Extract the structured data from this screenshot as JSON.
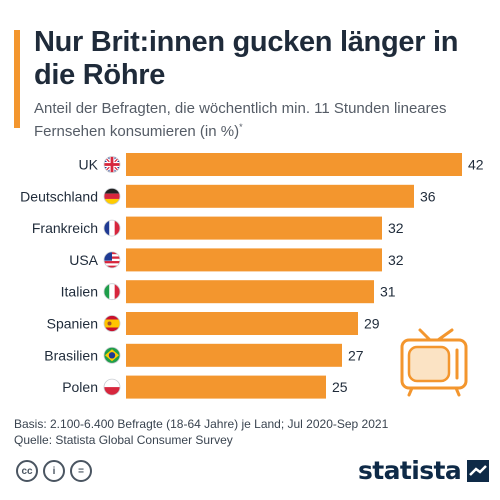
{
  "header": {
    "title": "Nur Brit:innen gucken länger in die Röhre",
    "subtitle": "Anteil der Befragten, die wöchentlich min. 11 Stunden lineares Fernsehen konsumieren (in %)",
    "subtitle_mark": "*"
  },
  "colors": {
    "bar": "#f3962e",
    "accent": "#f3962e",
    "text": "#1f2b3a",
    "brand": "#0e2a47"
  },
  "chart_data": {
    "type": "bar",
    "orientation": "horizontal",
    "categories": [
      "UK",
      "Deutschland",
      "Frankreich",
      "USA",
      "Italien",
      "Spanien",
      "Brasilien",
      "Polen"
    ],
    "values": [
      42,
      36,
      32,
      32,
      31,
      29,
      27,
      25
    ],
    "flags": [
      "uk-flag-icon",
      "germany-flag-icon",
      "france-flag-icon",
      "usa-flag-icon",
      "italy-flag-icon",
      "spain-flag-icon",
      "brazil-flag-icon",
      "poland-flag-icon"
    ],
    "xlim": [
      0,
      42
    ],
    "grid": false,
    "legend": "none",
    "data_labels": true
  },
  "decoration": {
    "icon": "tv-icon"
  },
  "footer": {
    "basis": "Basis: 2.100-6.400 Befragte (18-64 Jahre) je Land; Jul 2020-Sep 2021",
    "source": "Quelle: Statista Global Consumer Survey",
    "license_icons": [
      "cc-icon",
      "by-icon",
      "nd-icon"
    ],
    "license_glyphs": [
      "cc",
      "i",
      "="
    ]
  },
  "brand": {
    "name": "statista",
    "icon": "statista-logo-icon"
  }
}
